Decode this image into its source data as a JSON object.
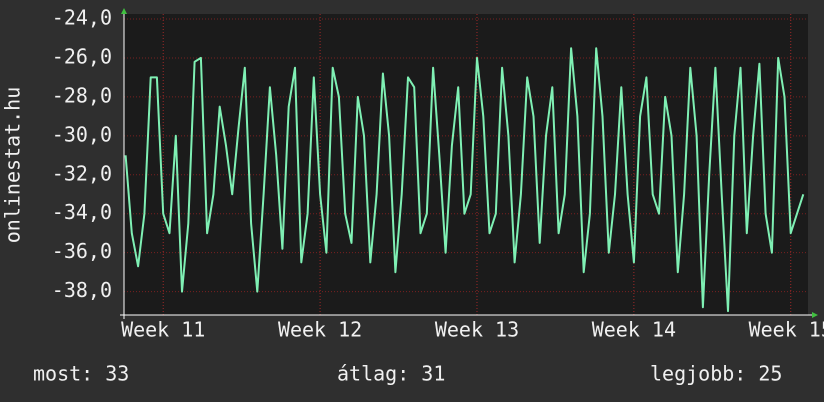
{
  "chart_data": {
    "type": "line",
    "ylabel": "onlinestat.hu",
    "color": "#7ff0b4",
    "grid": true,
    "xlim": [
      10.75,
      15.11
    ],
    "xticks": [
      {
        "value": 11,
        "label": "Week 11"
      },
      {
        "value": 12,
        "label": "Week 12"
      },
      {
        "value": 13,
        "label": "Week 13"
      },
      {
        "value": 14,
        "label": "Week 14"
      },
      {
        "value": 15,
        "label": "Week 15"
      }
    ],
    "ylim": [
      -39.2,
      -24
    ],
    "yticks": [
      {
        "value": -24,
        "label": "-24,0"
      },
      {
        "value": -26,
        "label": "-26,0"
      },
      {
        "value": -28,
        "label": "-28,0"
      },
      {
        "value": -30,
        "label": "-30,0"
      },
      {
        "value": -32,
        "label": "-32,0"
      },
      {
        "value": -34,
        "label": "-34,0"
      },
      {
        "value": -36,
        "label": "-36,0"
      },
      {
        "value": -38,
        "label": "-38,0"
      }
    ],
    "x": [
      10.76,
      10.8,
      10.84,
      10.88,
      10.92,
      10.96,
      11.0,
      11.04,
      11.08,
      11.12,
      11.16,
      11.2,
      11.24,
      11.28,
      11.32,
      11.36,
      11.4,
      11.44,
      11.48,
      11.52,
      11.56,
      11.6,
      11.64,
      11.68,
      11.72,
      11.76,
      11.8,
      11.84,
      11.88,
      11.92,
      11.96,
      12.0,
      12.04,
      12.08,
      12.12,
      12.16,
      12.2,
      12.24,
      12.28,
      12.32,
      12.36,
      12.4,
      12.44,
      12.48,
      12.52,
      12.56,
      12.6,
      12.64,
      12.68,
      12.72,
      12.76,
      12.8,
      12.84,
      12.88,
      12.92,
      12.96,
      13.0,
      13.04,
      13.08,
      13.12,
      13.16,
      13.2,
      13.24,
      13.28,
      13.32,
      13.36,
      13.4,
      13.44,
      13.48,
      13.52,
      13.56,
      13.6,
      13.64,
      13.68,
      13.72,
      13.76,
      13.8,
      13.84,
      13.88,
      13.92,
      13.96,
      14.0,
      14.04,
      14.08,
      14.12,
      14.16,
      14.2,
      14.24,
      14.28,
      14.32,
      14.36,
      14.4,
      14.44,
      14.48,
      14.52,
      14.56,
      14.6,
      14.64,
      14.68,
      14.72,
      14.76,
      14.8,
      14.84,
      14.88,
      14.92,
      14.96,
      15.0,
      15.04,
      15.08
    ],
    "values": [
      -31,
      -35,
      -36.7,
      -34,
      -27,
      -27,
      -34,
      -35,
      -30,
      -38,
      -34.5,
      -26.2,
      -26,
      -35,
      -33,
      -28.5,
      -30.5,
      -33,
      -29.6,
      -26.5,
      -34.5,
      -38,
      -33,
      -27.5,
      -31,
      -35.8,
      -28.5,
      -26.5,
      -36.5,
      -34,
      -27,
      -33,
      -36,
      -26.5,
      -28,
      -34,
      -35.5,
      -28,
      -30,
      -36.5,
      -33,
      -26.8,
      -30,
      -37,
      -33,
      -27,
      -27.5,
      -35,
      -34,
      -26.5,
      -31,
      -36,
      -30.5,
      -27.5,
      -34,
      -33,
      -26,
      -29,
      -35,
      -34,
      -26.5,
      -30,
      -36.5,
      -33,
      -27,
      -29,
      -35.5,
      -30,
      -27.5,
      -35,
      -33,
      -25.5,
      -29,
      -37,
      -34,
      -25.5,
      -29,
      -36,
      -33,
      -27.5,
      -33,
      -36.5,
      -29,
      -27,
      -33,
      -34,
      -28,
      -30,
      -37,
      -33,
      -26.5,
      -30,
      -38.8,
      -32,
      -26.5,
      -33,
      -39,
      -30,
      -26.5,
      -35,
      -30,
      -26.3,
      -34,
      -36,
      -26,
      -28,
      -35,
      -34,
      -33
    ],
    "stats": [
      "most: 33",
      "átlag: 31",
      "legjobb: 25"
    ]
  }
}
